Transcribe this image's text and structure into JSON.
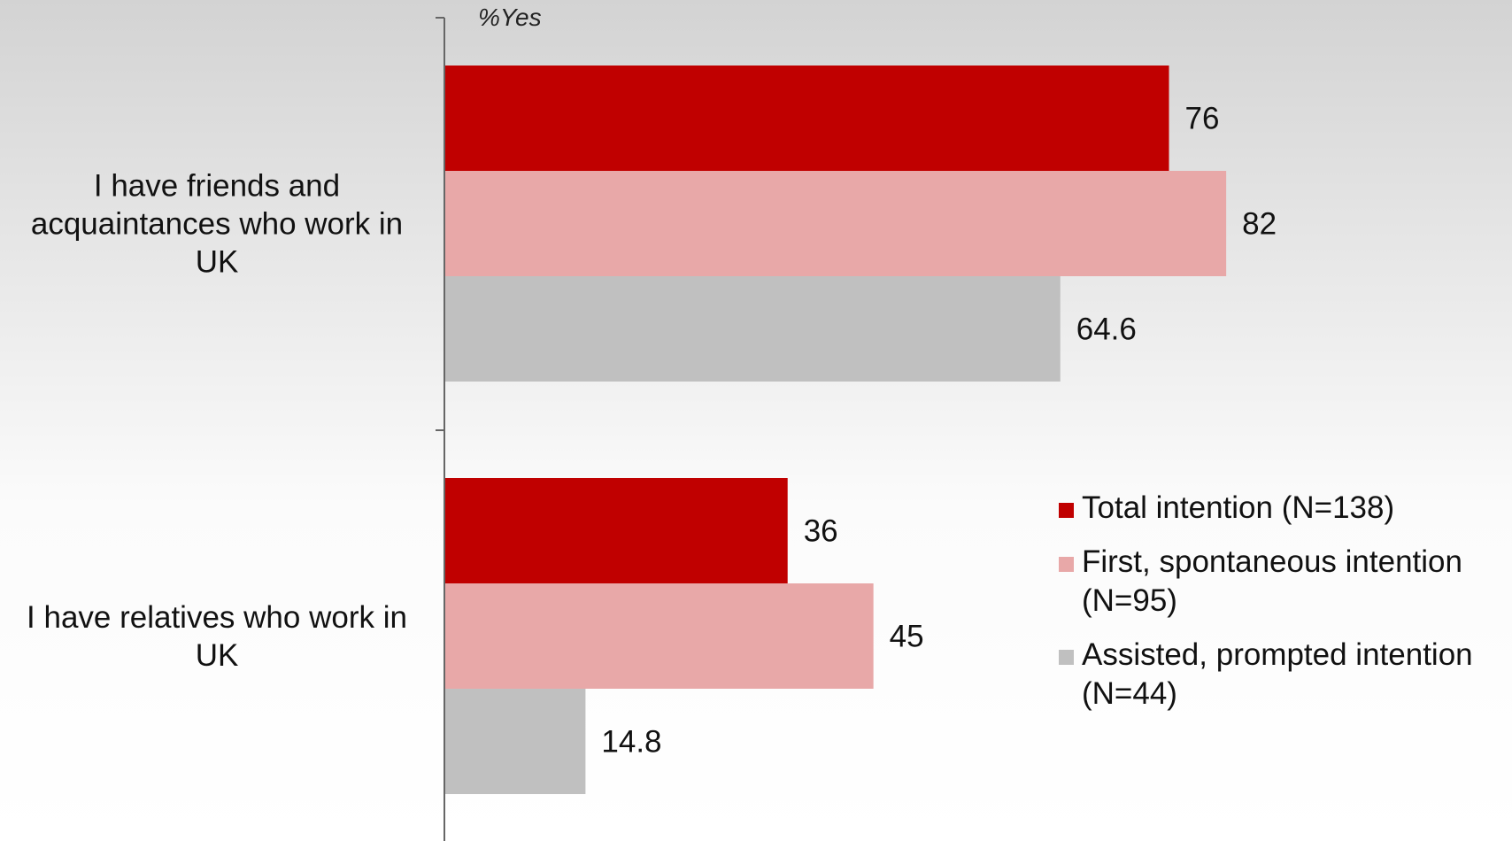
{
  "chart_data": {
    "type": "bar",
    "orientation": "horizontal",
    "axis_note": "%Yes",
    "categories": [
      "I have friends and acquaintances who work in UK",
      "I have relatives who work in UK"
    ],
    "category_lines": [
      [
        "I have friends and",
        "acquaintances who work in",
        "UK"
      ],
      [
        "I have relatives who work in",
        "UK"
      ]
    ],
    "series": [
      {
        "name": "Total intention (N=138)",
        "name_lines": [
          "Total intention (N=138)"
        ],
        "color": "#c00000",
        "values": [
          76,
          36
        ],
        "labels": [
          "76",
          "36"
        ]
      },
      {
        "name": "First, spontaneous intention (N=95)",
        "name_lines": [
          "First, spontaneous intention",
          "(N=95)"
        ],
        "color": "#e8a8a8",
        "values": [
          82,
          45
        ],
        "labels": [
          "82",
          "45"
        ]
      },
      {
        "name": "Assisted, prompted intention (N=44)",
        "name_lines": [
          "Assisted, prompted intention",
          "(N=44)"
        ],
        "color": "#c0c0c0",
        "values": [
          64.6,
          14.8
        ],
        "labels": [
          "64.6",
          "14.8"
        ]
      }
    ],
    "xlim": [
      0,
      100
    ],
    "grid": false,
    "legend_position": "right"
  }
}
